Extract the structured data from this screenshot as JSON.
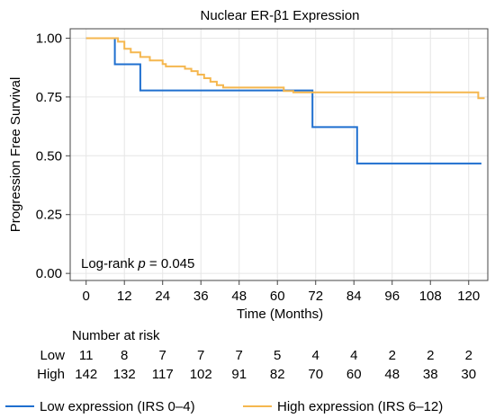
{
  "chart_data": {
    "type": "line",
    "title": "Nuclear ER-β1 Expression",
    "xlabel": "Time (Months)",
    "ylabel": "Progression Free Survival",
    "xlim": [
      -5,
      126
    ],
    "ylim": [
      -0.03,
      1.04
    ],
    "xticks": [
      0,
      12,
      24,
      36,
      48,
      60,
      72,
      84,
      96,
      108,
      120
    ],
    "yticks": [
      0.0,
      0.25,
      0.5,
      0.75,
      1.0
    ],
    "ytick_labels": [
      "0.00",
      "0.25",
      "0.50",
      "0.75",
      "1.00"
    ],
    "grid": true,
    "annotation": {
      "prefix": "Log-rank ",
      "italic": "p",
      "suffix": " = 0.045"
    },
    "series": [
      {
        "name": "Low expression (IRS 0–4)",
        "color": "#1f6fcf",
        "step": true,
        "points": [
          [
            0,
            1.0
          ],
          [
            9,
            1.0
          ],
          [
            9,
            0.889
          ],
          [
            17,
            0.889
          ],
          [
            17,
            0.778
          ],
          [
            71,
            0.778
          ],
          [
            71,
            0.622
          ],
          [
            85,
            0.622
          ],
          [
            85,
            0.467
          ],
          [
            124,
            0.467
          ]
        ]
      },
      {
        "name": "High expression (IRS 6–12)",
        "color": "#f5b74f",
        "step": true,
        "points": [
          [
            0,
            1.0
          ],
          [
            10,
            1.0
          ],
          [
            10,
            0.985
          ],
          [
            12,
            0.985
          ],
          [
            12,
            0.955
          ],
          [
            14,
            0.955
          ],
          [
            14,
            0.94
          ],
          [
            17,
            0.94
          ],
          [
            17,
            0.92
          ],
          [
            20,
            0.92
          ],
          [
            20,
            0.905
          ],
          [
            24,
            0.905
          ],
          [
            24,
            0.89
          ],
          [
            25,
            0.89
          ],
          [
            25,
            0.88
          ],
          [
            31,
            0.88
          ],
          [
            31,
            0.87
          ],
          [
            33,
            0.87
          ],
          [
            33,
            0.86
          ],
          [
            35,
            0.86
          ],
          [
            35,
            0.845
          ],
          [
            37,
            0.845
          ],
          [
            37,
            0.83
          ],
          [
            39,
            0.83
          ],
          [
            39,
            0.815
          ],
          [
            41,
            0.815
          ],
          [
            41,
            0.8
          ],
          [
            43,
            0.8
          ],
          [
            43,
            0.79
          ],
          [
            62,
            0.79
          ],
          [
            62,
            0.775
          ],
          [
            65,
            0.775
          ],
          [
            65,
            0.77
          ],
          [
            123,
            0.77
          ],
          [
            123,
            0.745
          ],
          [
            125,
            0.745
          ]
        ]
      }
    ],
    "risk_table": {
      "title": "Number at risk",
      "rows": [
        {
          "label": "Low",
          "values": [
            11,
            8,
            7,
            7,
            7,
            5,
            4,
            4,
            2,
            2,
            2
          ]
        },
        {
          "label": "High",
          "values": [
            142,
            132,
            117,
            102,
            91,
            82,
            70,
            60,
            48,
            38,
            30
          ]
        }
      ]
    }
  }
}
